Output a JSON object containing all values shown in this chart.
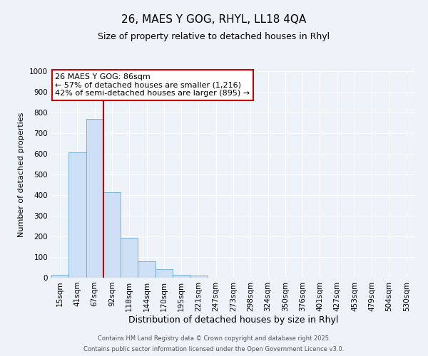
{
  "title": "26, MAES Y GOG, RHYL, LL18 4QA",
  "subtitle": "Size of property relative to detached houses in Rhyl",
  "xlabel": "Distribution of detached houses by size in Rhyl",
  "ylabel": "Number of detached properties",
  "bar_labels": [
    "15sqm",
    "41sqm",
    "67sqm",
    "92sqm",
    "118sqm",
    "144sqm",
    "170sqm",
    "195sqm",
    "221sqm",
    "247sqm",
    "273sqm",
    "298sqm",
    "324sqm",
    "350sqm",
    "376sqm",
    "401sqm",
    "427sqm",
    "453sqm",
    "479sqm",
    "504sqm",
    "530sqm"
  ],
  "bar_values": [
    15,
    608,
    770,
    413,
    193,
    78,
    40,
    15,
    10,
    0,
    0,
    0,
    0,
    0,
    0,
    0,
    0,
    0,
    0,
    0,
    0
  ],
  "bar_color": "#ccdff5",
  "bar_edgecolor": "#6aaad4",
  "vline_color": "#cc0000",
  "ylim": [
    0,
    1000
  ],
  "yticks": [
    0,
    100,
    200,
    300,
    400,
    500,
    600,
    700,
    800,
    900,
    1000
  ],
  "annotation_title": "26 MAES Y GOG: 86sqm",
  "annotation_line1": "← 57% of detached houses are smaller (1,216)",
  "annotation_line2": "42% of semi-detached houses are larger (895) →",
  "annotation_box_color": "#cc0000",
  "footer1": "Contains HM Land Registry data © Crown copyright and database right 2025.",
  "footer2": "Contains public sector information licensed under the Open Government Licence v3.0.",
  "bg_color": "#eef2f9",
  "plot_bg_color": "#eef2f9",
  "grid_color": "#ffffff",
  "title_fontsize": 11,
  "subtitle_fontsize": 9,
  "xlabel_fontsize": 9,
  "ylabel_fontsize": 8,
  "tick_fontsize": 7.5,
  "annotation_fontsize": 8,
  "footer_fontsize": 6
}
